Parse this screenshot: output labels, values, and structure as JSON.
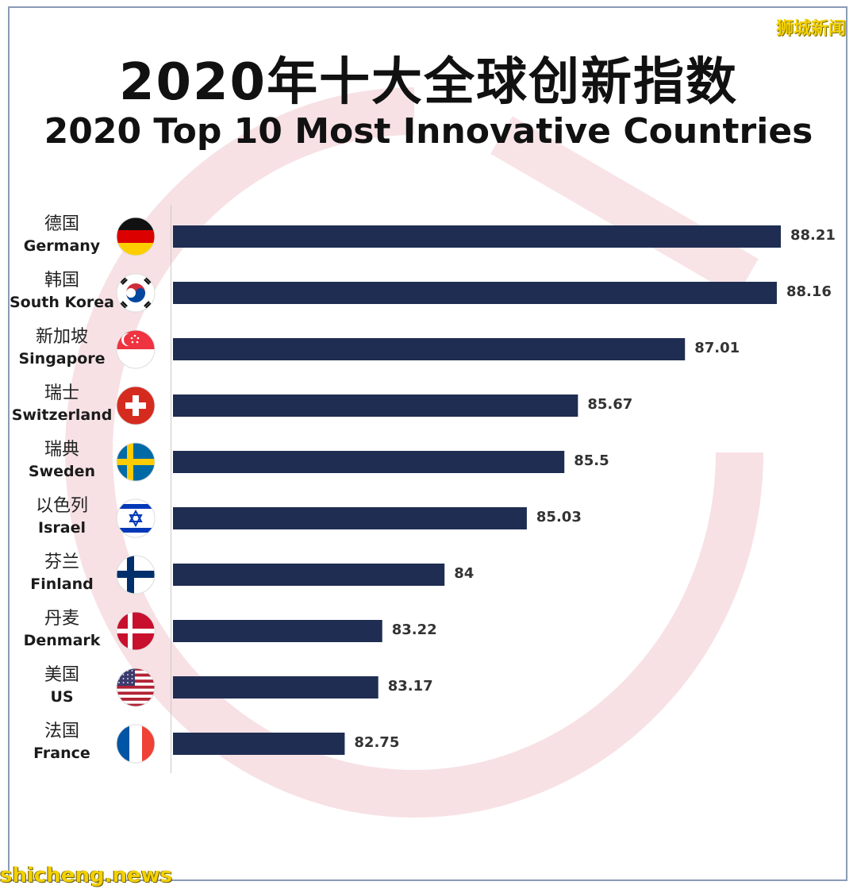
{
  "header": {
    "title_zh": "2020年十大全球创新指数",
    "title_en": "2020 Top 10 Most Innovative Countries"
  },
  "branding": {
    "top_right": "狮城新闻",
    "bottom_left": "shicheng.news"
  },
  "colors": {
    "bar": "#1f2d52",
    "watermark": "#f1c9cd",
    "brand_text": "#f3d100"
  },
  "chart_data": {
    "type": "bar",
    "orientation": "horizontal",
    "title": "2020 Top 10 Most Innovative Countries",
    "categories": [
      {
        "zh": "德国",
        "en": "Germany",
        "flag": "flag-germany-icon"
      },
      {
        "zh": "韩国",
        "en": "South Korea",
        "flag": "flag-south-korea-icon"
      },
      {
        "zh": "新加坡",
        "en": "Singapore",
        "flag": "flag-singapore-icon"
      },
      {
        "zh": "瑞士",
        "en": "Switzerland",
        "flag": "flag-switzerland-icon"
      },
      {
        "zh": "瑞典",
        "en": "Sweden",
        "flag": "flag-sweden-icon"
      },
      {
        "zh": "以色列",
        "en": "Israel",
        "flag": "flag-israel-icon"
      },
      {
        "zh": "芬兰",
        "en": "Finland",
        "flag": "flag-finland-icon"
      },
      {
        "zh": "丹麦",
        "en": "Denmark",
        "flag": "flag-denmark-icon"
      },
      {
        "zh": "美国",
        "en": "US",
        "flag": "flag-usa-icon"
      },
      {
        "zh": "法国",
        "en": "France",
        "flag": "flag-france-icon"
      }
    ],
    "values": [
      88.21,
      88.16,
      87.01,
      85.67,
      85.5,
      85.03,
      84,
      83.22,
      83.17,
      82.75
    ],
    "value_labels": [
      "88.21",
      "88.16",
      "87.01",
      "85.67",
      "85.5",
      "85.03",
      "84",
      "83.22",
      "83.17",
      "82.75"
    ],
    "xlim": [
      0,
      88.21
    ],
    "grid": false,
    "legend": "none"
  }
}
